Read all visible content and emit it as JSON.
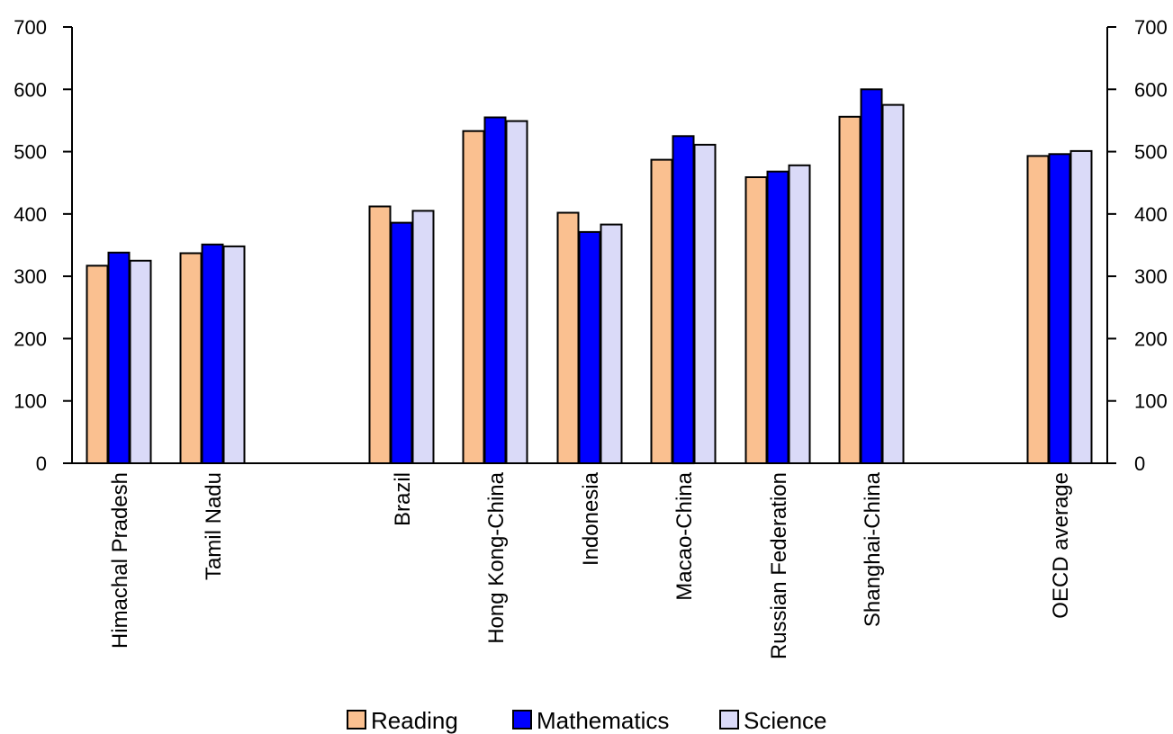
{
  "chart_data": {
    "type": "bar",
    "categories": [
      "Himachal Pradesh",
      "Tamil Nadu",
      "Brazil",
      "Hong Kong-China",
      "Indonesia",
      "Macao-China",
      "Russian Federation",
      "Shanghai-China",
      "OECD average"
    ],
    "series": [
      {
        "name": "Reading",
        "color": "#FAC090",
        "values": [
          317,
          337,
          412,
          533,
          402,
          487,
          459,
          556,
          493
        ]
      },
      {
        "name": "Mathematics",
        "color": "#0000FF",
        "values": [
          338,
          351,
          386,
          555,
          371,
          525,
          468,
          600,
          496
        ]
      },
      {
        "name": "Science",
        "color": "#DADAF8",
        "values": [
          325,
          348,
          405,
          549,
          383,
          511,
          478,
          575,
          501
        ]
      }
    ],
    "ylim": [
      0,
      700
    ],
    "yticks": [
      0,
      100,
      200,
      300,
      400,
      500,
      600,
      700
    ],
    "y_axis_right": true,
    "grid": false,
    "legend_position": "bottom"
  }
}
